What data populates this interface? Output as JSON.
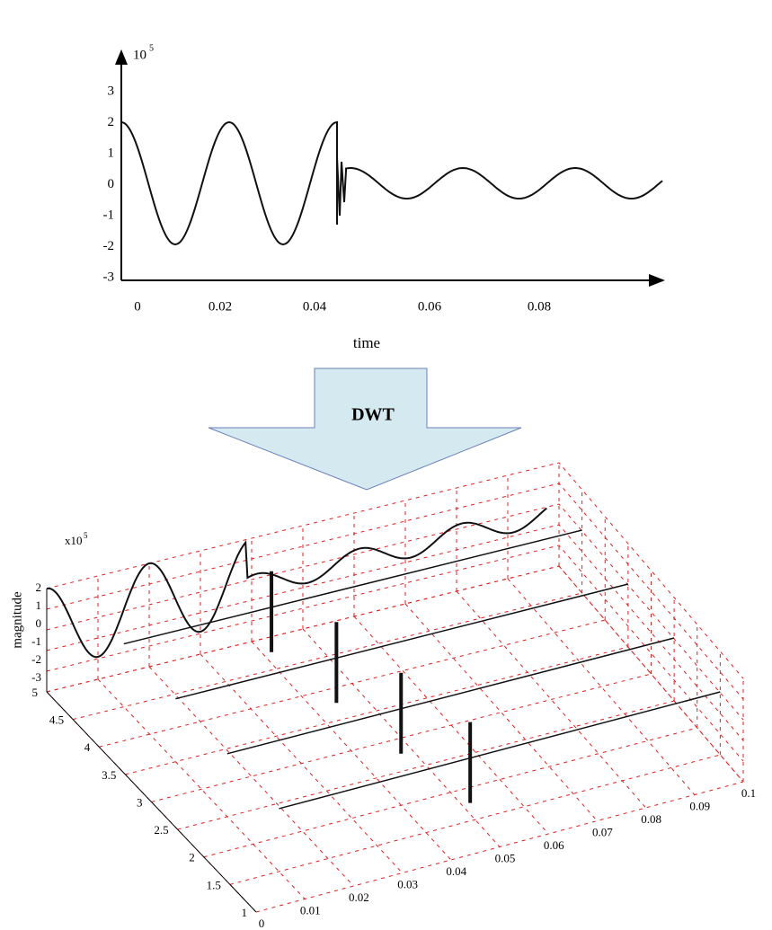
{
  "top_plot": {
    "exponent": "10",
    "exponent_power": "5",
    "y_labels": [
      "3",
      "2",
      "1",
      "0",
      "-1",
      "-2",
      "-3"
    ],
    "x_labels": [
      "0",
      "0.02",
      "0.04",
      "0.06",
      "0.08"
    ],
    "x_title": "time"
  },
  "transform": {
    "label": "DWT"
  },
  "plot_3d": {
    "scale": "x10",
    "scale_power": "5",
    "z_title": "magnitude",
    "z_labels": [
      "2",
      "1",
      "0",
      "-1",
      "-2",
      "-3"
    ],
    "y_labels": [
      "5",
      "4.5",
      "4",
      "3.5",
      "3",
      "2.5",
      "2",
      "1.5",
      "1"
    ],
    "x_labels": [
      "0",
      "0.01",
      "0.02",
      "0.03",
      "0.04",
      "0.05",
      "0.06",
      "0.07",
      "0.08",
      "0.09",
      "0.1"
    ]
  }
}
